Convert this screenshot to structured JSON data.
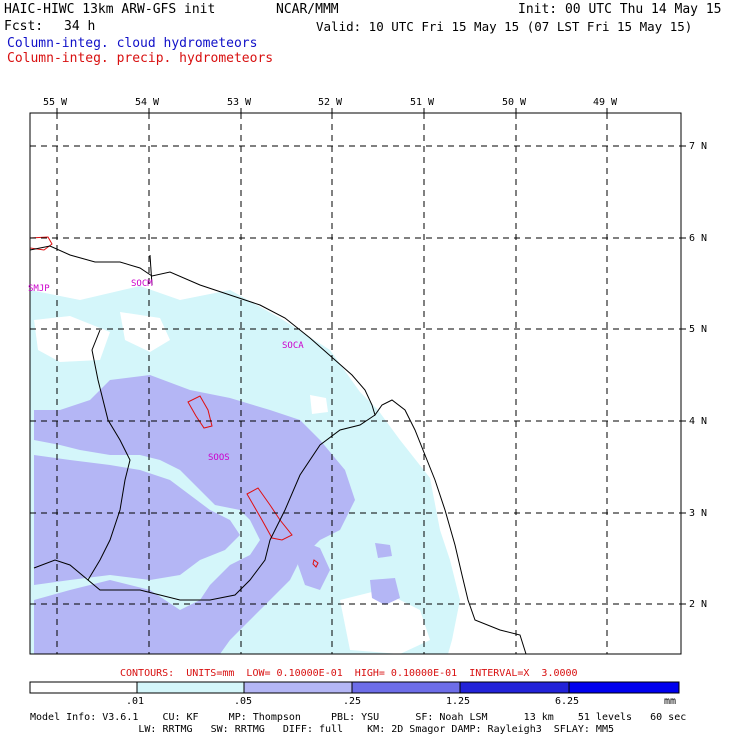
{
  "header": {
    "model_title": "HAIC-HIWC 13km ARW-GFS init",
    "center": "NCAR/MMM",
    "init": "Init: 00 UTC Thu 14 May 15",
    "fcst_label": "Fcst:",
    "fcst_value": "34 h",
    "valid": "Valid: 10 UTC Fri 15 May 15 (07 LST Fri 15 May 15)",
    "field_cloud": "Column-integ. cloud hydrometeors",
    "field_precip": "Column-integ. precip. hydrometeors"
  },
  "map": {
    "lon_labels": [
      "55 W",
      "54 W",
      "53 W",
      "52 W",
      "51 W",
      "50 W",
      "49 W"
    ],
    "lat_labels": [
      "7 N",
      "6 N",
      "5 N",
      "4 N",
      "3 N",
      "2 N"
    ],
    "stations": [
      "SMJP",
      "SOCM",
      "SOCA",
      "SOOS"
    ]
  },
  "contours_text": "CONTOURS:  UNITS=mm  LOW= 0.10000E-01  HIGH= 0.10000E-01  INTERVAL=X  3.0000",
  "colorbar": {
    "ticks": [
      ".01",
      ".05",
      ".25",
      "1.25",
      "6.25"
    ],
    "units": "mm",
    "colors": [
      "#ffffff",
      "#d4f6fa",
      "#b4b6f5",
      "#6d6de8",
      "#2222d8",
      "#0000ee"
    ]
  },
  "footer": {
    "line1": "Model Info: V3.6.1    CU: KF     MP: Thompson     PBL: YSU      SF: Noah LSM      13 km    51 levels   60 sec",
    "line2": "                  LW: RRTMG   SW: RRTMG   DIFF: full    KM: 2D Smagor DAMP: Rayleigh3  SFLAY: MM5"
  }
}
